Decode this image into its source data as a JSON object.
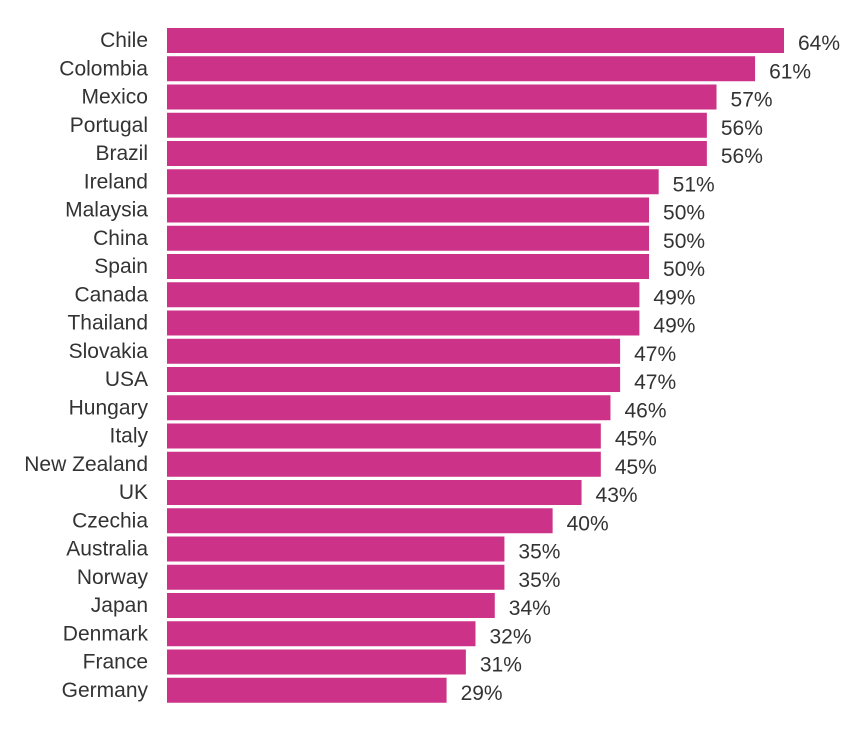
{
  "chart_data": {
    "type": "bar",
    "orientation": "horizontal",
    "categories": [
      "Chile",
      "Colombia",
      "Mexico",
      "Portugal",
      "Brazil",
      "Ireland",
      "Malaysia",
      "China",
      "Spain",
      "Canada",
      "Thailand",
      "Slovakia",
      "USA",
      "Hungary",
      "Italy",
      "New Zealand",
      "UK",
      "Czechia",
      "Australia",
      "Norway",
      "Japan",
      "Denmark",
      "France",
      "Germany"
    ],
    "values": [
      64,
      61,
      57,
      56,
      56,
      51,
      50,
      50,
      50,
      49,
      49,
      47,
      47,
      46,
      45,
      45,
      43,
      40,
      35,
      35,
      34,
      32,
      31,
      29
    ],
    "value_labels": [
      "64%",
      "61%",
      "57%",
      "56%",
      "56%",
      "51%",
      "50%",
      "50%",
      "50%",
      "49%",
      "49%",
      "47%",
      "47%",
      "46%",
      "45%",
      "45%",
      "43%",
      "40%",
      "35%",
      "35%",
      "34%",
      "32%",
      "31%",
      "29%"
    ],
    "unit": "%",
    "title": "",
    "xlabel": "",
    "ylabel": "",
    "xlim": [
      0,
      64
    ],
    "grid": false,
    "bar_color": "#cc3388",
    "text_color": "#333333"
  }
}
